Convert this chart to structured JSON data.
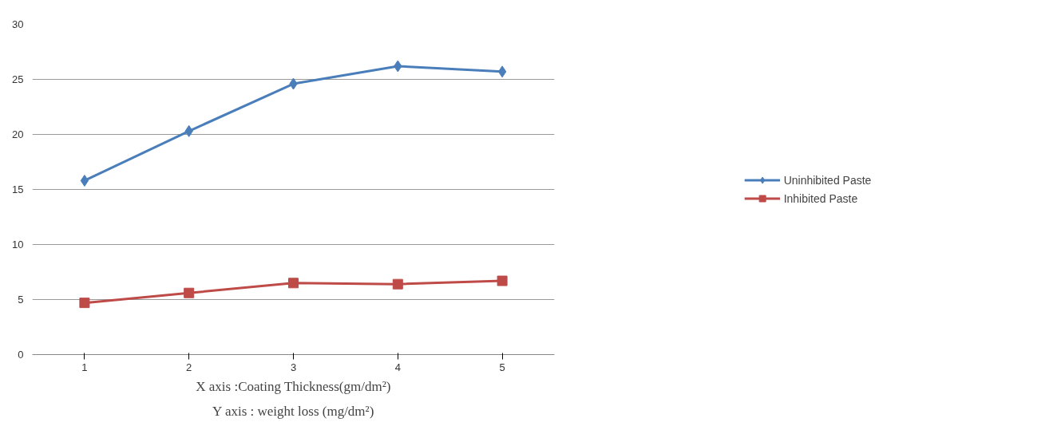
{
  "chart_data": {
    "type": "line",
    "categories": [
      "1",
      "2",
      "3",
      "4",
      "5"
    ],
    "series": [
      {
        "name": "Uninhibited Paste",
        "color": "#4a7ebb",
        "marker": "diamond",
        "values": [
          15.8,
          20.3,
          24.6,
          26.2,
          25.7
        ]
      },
      {
        "name": "Inhibited Paste",
        "color": "#be4b48",
        "marker": "square",
        "values": [
          4.7,
          5.6,
          6.5,
          6.4,
          6.7
        ]
      }
    ],
    "ylim": [
      0,
      30
    ],
    "yticks": [
      0,
      5,
      10,
      15,
      20,
      25,
      30
    ],
    "grid": "y",
    "legend": "right",
    "annotations": [
      "X axis :Coating Thickness(gm/dm²)",
      "Y axis : weight loss (mg/dm²)"
    ]
  }
}
